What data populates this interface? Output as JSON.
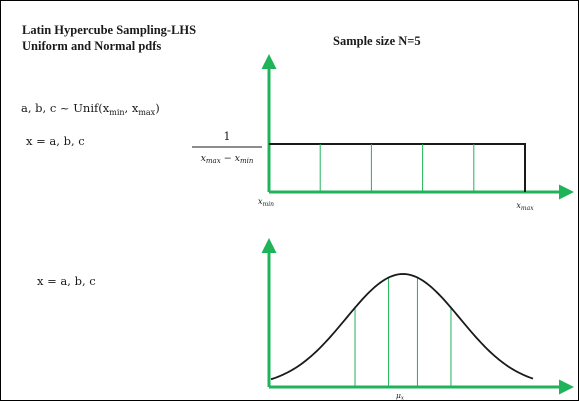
{
  "title_line1": "Latin Hypercube Sampling-LHS",
  "title_line2": "Uniform and Normal pdfs",
  "sample_size_label": "Sample size N=5",
  "distribution_statement": {
    "prefix": "a, b, c ~ Unif(x",
    "min_sub": "min",
    "sep": ", x",
    "max_sub": "max",
    "suffix": ")"
  },
  "variable_assignment_top": "x = a, b, c",
  "variable_assignment_bottom": "x = a, b, c",
  "uniform_plot": {
    "density_numerator": "1",
    "density_denominator": "x_max − x_min",
    "x_min_label": "x_min",
    "x_max_label": "x_max",
    "interior_divisions": 4
  },
  "normal_plot": {
    "mean_label": "μ_x",
    "interior_divisions": 4
  },
  "colors": {
    "axis": "#1fb35a",
    "curve": "#1a1a1a",
    "text": "#1a1a1a"
  }
}
